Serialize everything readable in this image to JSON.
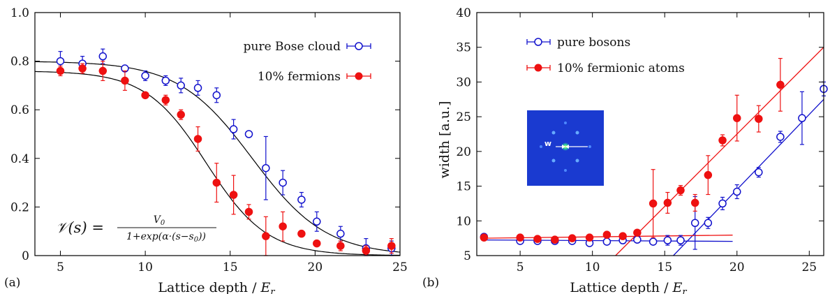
{
  "chart_data": [
    {
      "type": "scatter",
      "panel_label": "(a)",
      "xlabel": "Lattice depth / ",
      "xlabel_unit": "E",
      "xlabel_unit_sub": "r",
      "ylabel": "",
      "xlim": [
        3.5,
        25
      ],
      "ylim": [
        0,
        1.0
      ],
      "xticks": [
        5,
        10,
        15,
        20,
        25
      ],
      "yticks": [
        0,
        0.2,
        0.4,
        0.6,
        0.8,
        1.0
      ],
      "ytick_labels": [
        "0",
        "0.2",
        "0.4",
        "0.6",
        "0.8",
        "1.0"
      ],
      "grid": false,
      "legend_position": "top-right",
      "formula": {
        "lhs": "𝒱(s) = ",
        "numerator": "V",
        "numerator_sub": "0",
        "denominator": "1+exp(α·(s−s",
        "denominator_sub": "0",
        "denominator_end": "))"
      },
      "series": [
        {
          "name": "pure Bose cloud",
          "marker": "open-circle",
          "color": "#1010cc",
          "x": [
            5,
            6.3,
            7.5,
            8.8,
            10,
            11.2,
            12.1,
            13.1,
            14.2,
            15.2,
            16.1,
            17.1,
            18.1,
            19.2,
            20.1,
            21.5,
            23,
            24.5
          ],
          "y": [
            0.8,
            0.79,
            0.82,
            0.77,
            0.74,
            0.72,
            0.7,
            0.69,
            0.66,
            0.52,
            0.5,
            0.36,
            0.3,
            0.23,
            0.14,
            0.09,
            0.03,
            0.03
          ],
          "yerr": [
            0.04,
            0.03,
            0.03,
            0.01,
            0.02,
            0.02,
            0.03,
            0.03,
            0.03,
            0.04,
            0.01,
            0.13,
            0.05,
            0.03,
            0.04,
            0.03,
            0.04,
            0.03
          ],
          "fit_curve": {
            "A": 0.8,
            "s0": 16.3,
            "alpha": 0.46
          }
        },
        {
          "name": "10% fermions",
          "marker": "filled-circle",
          "color": "#ee1111",
          "x": [
            5,
            6.3,
            7.5,
            8.8,
            10,
            11.2,
            12.1,
            13.1,
            14.2,
            15.2,
            16.1,
            17.1,
            18.1,
            19.2,
            20.1,
            21.5,
            23,
            24.5
          ],
          "y": [
            0.76,
            0.77,
            0.76,
            0.72,
            0.66,
            0.64,
            0.58,
            0.48,
            0.3,
            0.25,
            0.18,
            0.08,
            0.12,
            0.09,
            0.05,
            0.04,
            0.02,
            0.04
          ],
          "yerr": [
            0.02,
            0.02,
            0.04,
            0.04,
            0.01,
            0.02,
            0.02,
            0.05,
            0.08,
            0.08,
            0.03,
            0.08,
            0.06,
            0.01,
            0.01,
            0.02,
            0.02,
            0.03
          ],
          "fit_curve": {
            "A": 0.76,
            "s0": 13.6,
            "alpha": 0.56
          }
        }
      ]
    },
    {
      "type": "scatter",
      "panel_label": "(b)",
      "xlabel": "Lattice depth / ",
      "xlabel_unit": "E",
      "xlabel_unit_sub": "r",
      "ylabel": "width [a.u.]",
      "xlim": [
        2,
        26
      ],
      "ylim": [
        5,
        40
      ],
      "xticks": [
        5,
        10,
        15,
        20,
        25
      ],
      "yticks": [
        5,
        10,
        15,
        20,
        25,
        30,
        35,
        40
      ],
      "grid": false,
      "legend_position": "top-left",
      "inset_label": "w",
      "series": [
        {
          "name": "pure bosons",
          "marker": "open-circle",
          "color": "#1010cc",
          "x": [
            2.5,
            5,
            6.2,
            7.4,
            8.6,
            9.8,
            11,
            12.1,
            13.1,
            14.2,
            15.2,
            16.1,
            17.1,
            18,
            19,
            20,
            21.5,
            23,
            24.5,
            26
          ],
          "y": [
            7.7,
            7.1,
            7.1,
            7.1,
            7.1,
            6.8,
            7.0,
            7.2,
            7.3,
            7.0,
            7.2,
            7.2,
            9.7,
            9.7,
            12.5,
            14.2,
            17.0,
            22.1,
            24.8,
            29.0
          ],
          "yerr": [
            0.3,
            0.3,
            0.3,
            0.3,
            0.3,
            0.3,
            0.3,
            0.3,
            0.3,
            0.3,
            0.7,
            0.7,
            3.8,
            0.8,
            0.9,
            1.0,
            0.7,
            0.8,
            3.8,
            1.0
          ],
          "fit_lines": [
            {
              "x": [
                2.5,
                19.7
              ],
              "y": [
                7.25,
                7.05
              ]
            },
            {
              "x": [
                15.6,
                26
              ],
              "y": [
                5.0,
                27.5
              ]
            }
          ]
        },
        {
          "name": "10% fermionic atoms",
          "marker": "filled-circle",
          "color": "#ee1111",
          "x": [
            2.5,
            5,
            6.2,
            7.4,
            8.6,
            9.8,
            11,
            12.1,
            13.1,
            14.2,
            15.2,
            16.1,
            17.1,
            18,
            19,
            20,
            21.5,
            23
          ],
          "y": [
            7.6,
            7.6,
            7.4,
            7.3,
            7.5,
            7.6,
            8.0,
            7.8,
            8.3,
            12.5,
            12.6,
            14.4,
            12.6,
            16.6,
            21.6,
            24.8,
            24.7,
            29.6
          ],
          "yerr": [
            0.2,
            0.2,
            0.2,
            0.2,
            0.2,
            0.2,
            0.2,
            0.2,
            0.3,
            4.9,
            1.5,
            0.7,
            1.2,
            2.8,
            0.8,
            3.3,
            1.9,
            3.8
          ],
          "fit_lines": [
            {
              "x": [
                2.5,
                19.7
              ],
              "y": [
                7.5,
                7.95
              ]
            },
            {
              "x": [
                11.6,
                26
              ],
              "y": [
                5.0,
                35.0
              ]
            }
          ]
        }
      ]
    }
  ]
}
